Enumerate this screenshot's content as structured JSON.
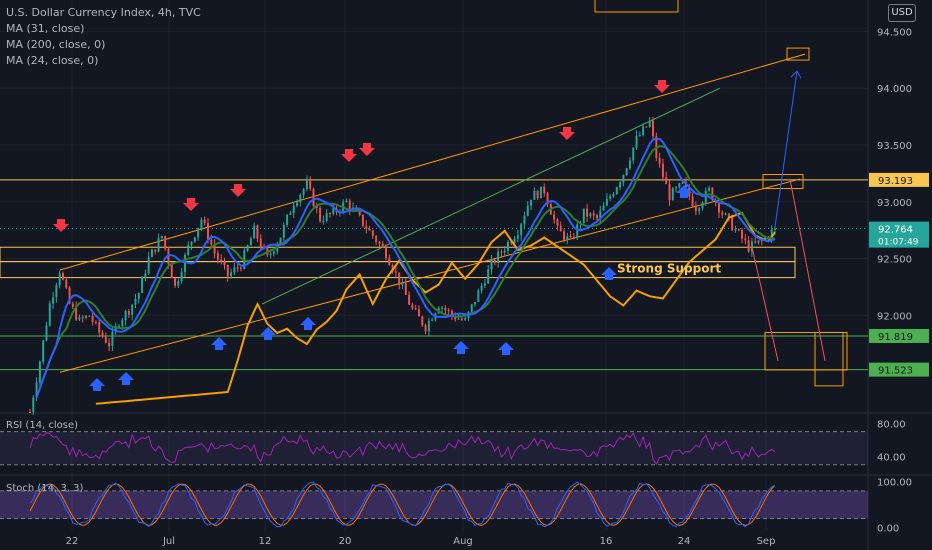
{
  "legend": {
    "title": "U.S. Dollar Currency Index, 4h, TVC",
    "ma1": "MA (31, close)",
    "ma2": "MA (200, close, 0)",
    "ma3": "MA (24, close, 0)"
  },
  "currency": "USD",
  "annotation_text": "Strong Support",
  "rsi_label": "RSI (14, close)",
  "stoch_label": "Stoch (14, 3, 3)",
  "colors": {
    "background": "#131722",
    "up": "#26a69a",
    "down": "#ef5350",
    "ma31": "#2962ff",
    "ma24": "#2e7d32",
    "ma200": "#f59f00",
    "trendline": "#ff9800",
    "green_line": "#4caf50",
    "arrow_up": "#2962ff",
    "arrow_down": "#f23645",
    "rsi": "#9c27b0",
    "stoch_k": "#2962ff",
    "stoch_d": "#ff6d00",
    "last_label": "#26a69a"
  },
  "chart_data": {
    "type": "candlestick",
    "symbol": "U.S. Dollar Currency Index",
    "interval": "4h",
    "x_ticks": [
      "22",
      "Jul",
      "12",
      "20",
      "Aug",
      "16",
      "24",
      "Sep"
    ],
    "price_ticks": [
      "94.500",
      "94.000",
      "93.500",
      "93.000",
      "92.500",
      "92.000"
    ],
    "ylim": [
      91.15,
      94.6
    ],
    "price_labels": [
      {
        "text": "93.193",
        "value": 93.193
      },
      {
        "text": "92.764",
        "value": 92.764,
        "sub": "01:07:49"
      },
      {
        "text": "91.819",
        "value": 91.819
      },
      {
        "text": "91.523",
        "value": 91.523
      }
    ],
    "support_levels": [
      93.193,
      92.52,
      91.819,
      91.523
    ],
    "price_path": [
      [
        0,
        91.15
      ],
      [
        3,
        91.6
      ],
      [
        6,
        92.1
      ],
      [
        9,
        92.4
      ],
      [
        12,
        92.1
      ],
      [
        15,
        91.95
      ],
      [
        18,
        92.0
      ],
      [
        21,
        91.85
      ],
      [
        24,
        91.75
      ],
      [
        27,
        91.95
      ],
      [
        30,
        92.05
      ],
      [
        33,
        92.2
      ],
      [
        36,
        92.5
      ],
      [
        40,
        92.7
      ],
      [
        44,
        92.25
      ],
      [
        48,
        92.6
      ],
      [
        52,
        92.85
      ],
      [
        56,
        92.55
      ],
      [
        60,
        92.35
      ],
      [
        64,
        92.45
      ],
      [
        68,
        92.75
      ],
      [
        72,
        92.5
      ],
      [
        76,
        92.7
      ],
      [
        80,
        93.0
      ],
      [
        84,
        93.15
      ],
      [
        88,
        92.85
      ],
      [
        92,
        92.9
      ],
      [
        96,
        93.0
      ],
      [
        100,
        92.85
      ],
      [
        104,
        92.7
      ],
      [
        108,
        92.55
      ],
      [
        112,
        92.3
      ],
      [
        116,
        92.05
      ],
      [
        120,
        91.9
      ],
      [
        124,
        92.1
      ],
      [
        128,
        92.0
      ],
      [
        132,
        91.95
      ],
      [
        136,
        92.2
      ],
      [
        140,
        92.45
      ],
      [
        144,
        92.6
      ],
      [
        148,
        92.75
      ],
      [
        152,
        93.05
      ],
      [
        156,
        93.1
      ],
      [
        160,
        92.75
      ],
      [
        164,
        92.65
      ],
      [
        168,
        92.9
      ],
      [
        172,
        92.85
      ],
      [
        176,
        93.05
      ],
      [
        180,
        93.25
      ],
      [
        184,
        93.55
      ],
      [
        188,
        93.7
      ],
      [
        190,
        93.4
      ],
      [
        194,
        93.05
      ],
      [
        198,
        93.15
      ],
      [
        202,
        92.95
      ],
      [
        206,
        93.1
      ],
      [
        210,
        92.9
      ],
      [
        214,
        92.75
      ],
      [
        218,
        92.6
      ],
      [
        222,
        92.65
      ],
      [
        226,
        92.764
      ]
    ],
    "rsi": {
      "ticks": [
        "80.00",
        "40.00"
      ],
      "levels": [
        70,
        30
      ],
      "range": [
        20,
        90
      ]
    },
    "stoch": {
      "ticks": [
        "100.00",
        "0.00"
      ],
      "levels": [
        80,
        20
      ],
      "range": [
        -5,
        110
      ]
    }
  }
}
